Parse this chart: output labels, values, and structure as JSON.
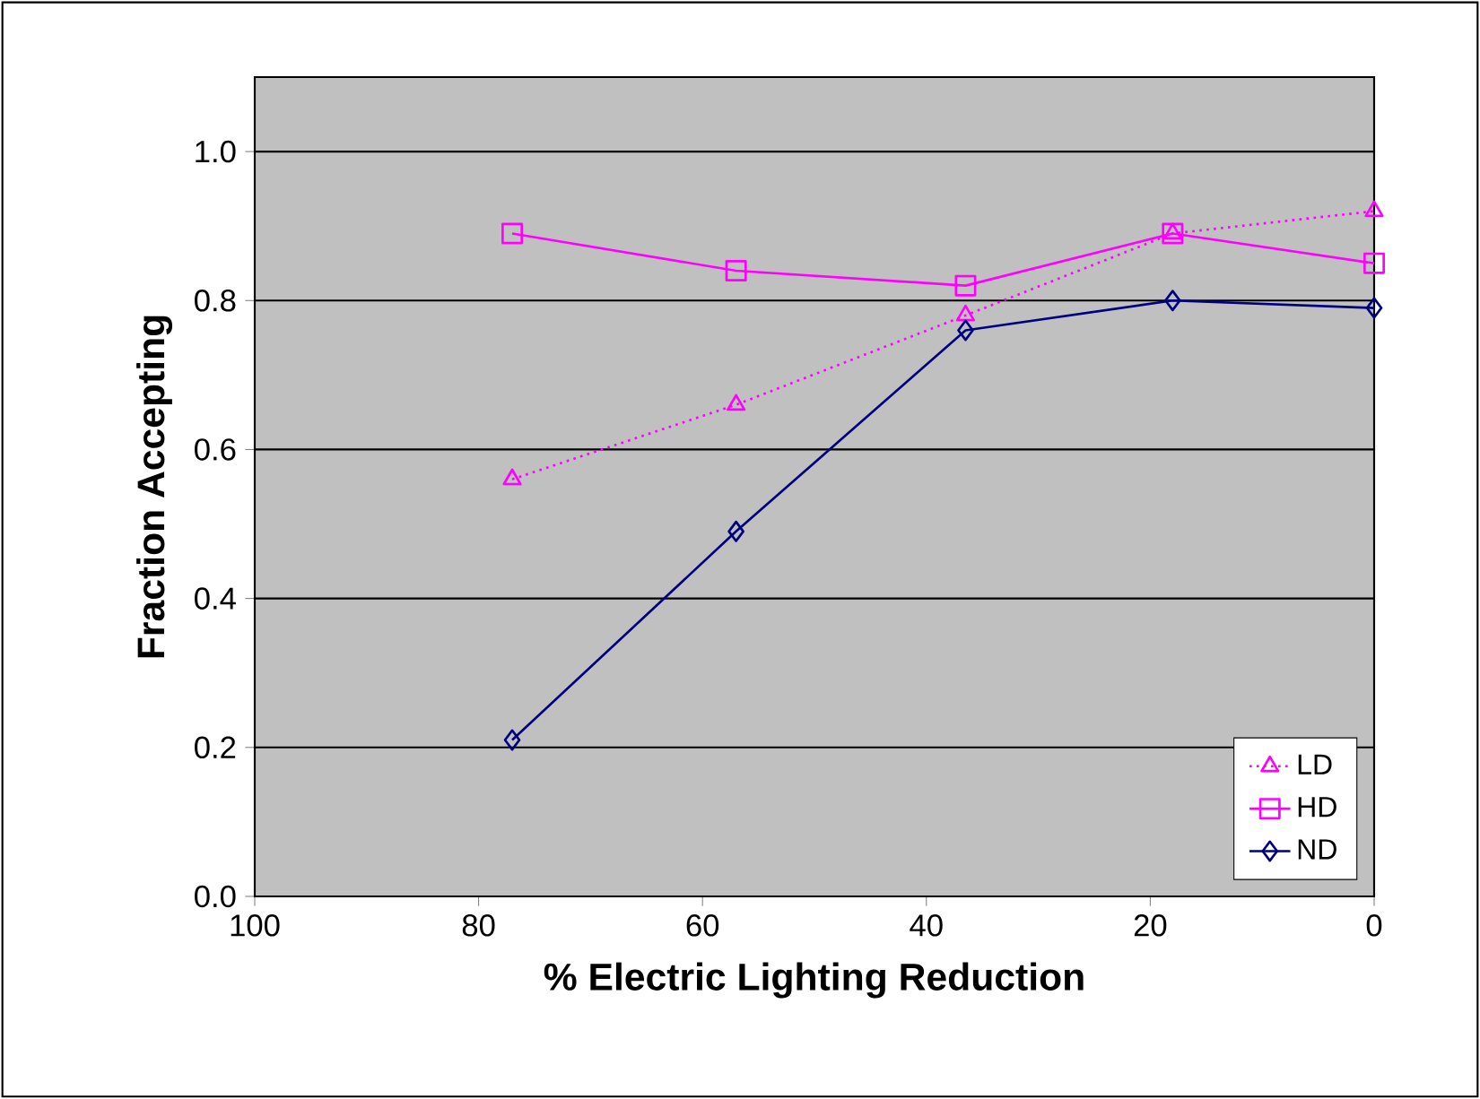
{
  "chart_data": {
    "type": "line",
    "xlabel": "% Electric Lighting Reduction",
    "ylabel": "Fraction Accepting",
    "x": [
      77,
      57,
      36.5,
      18,
      0
    ],
    "series": [
      {
        "name": "LD",
        "color": "#ff00ff",
        "marker": "triangle",
        "line_style": "dotted",
        "values": [
          0.56,
          0.66,
          0.78,
          0.89,
          0.92
        ]
      },
      {
        "name": "HD",
        "color": "#ff00ff",
        "marker": "square",
        "line_style": "solid",
        "values": [
          0.89,
          0.84,
          0.82,
          0.89,
          0.85
        ]
      },
      {
        "name": "ND",
        "color": "#000080",
        "marker": "diamond",
        "line_style": "solid",
        "values": [
          0.21,
          0.49,
          0.76,
          0.8,
          0.79
        ]
      }
    ],
    "xlim": [
      100,
      0
    ],
    "xticks": [
      100,
      80,
      60,
      40,
      20,
      0
    ],
    "ylim": [
      0,
      1.1
    ],
    "yticks": [
      {
        "value": 0,
        "label": "0.0"
      },
      0.2,
      0.4,
      0.6,
      0.8,
      {
        "value": 1,
        "label": "1.0"
      }
    ],
    "grid": "y",
    "legend": "bottom right"
  }
}
